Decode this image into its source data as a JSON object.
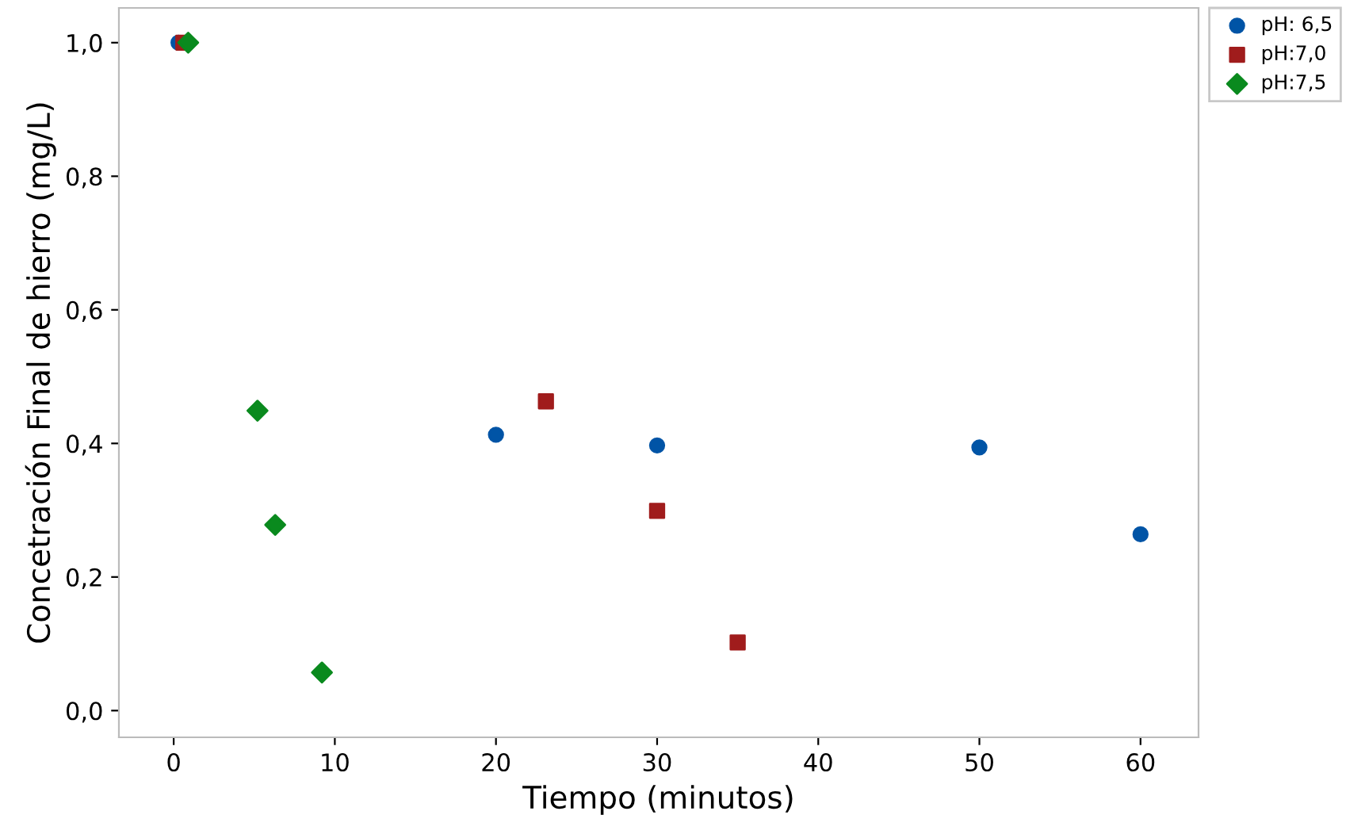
{
  "chart_data": {
    "type": "scatter",
    "xlabel": "Tiempo (minutos)",
    "ylabel": "Concetración Final de hierro (mg/L)",
    "xlim": [
      -3.4,
      63.6
    ],
    "ylim": [
      -0.04,
      1.052
    ],
    "xticks": [
      0,
      10,
      20,
      30,
      40,
      50,
      60
    ],
    "yticks": [
      {
        "value": 0,
        "label": "0,0"
      },
      {
        "value": 0.2,
        "label": "0,2"
      },
      {
        "value": 0.4,
        "label": "0,4"
      },
      {
        "value": 0.6,
        "label": "0,6"
      },
      {
        "value": 0.8,
        "label": "0,8"
      },
      {
        "value": 1.0,
        "label": "1,0"
      }
    ],
    "grid": false,
    "legend": "top right",
    "series": [
      {
        "name": "pH: 6,5",
        "color": "#0054a6",
        "marker": "circle",
        "x": [
          0.3,
          20,
          30,
          50,
          60
        ],
        "values": [
          1.0,
          0.413,
          0.397,
          0.394,
          0.264
        ]
      },
      {
        "name": "pH:7,0",
        "color": "#a01c1c",
        "marker": "square",
        "x": [
          0.6,
          23.1,
          30,
          35
        ],
        "values": [
          1.0,
          0.463,
          0.299,
          0.102
        ]
      },
      {
        "name": "pH:7,5",
        "color": "#0a8a1e",
        "marker": "diamond",
        "x": [
          0.9,
          5.2,
          6.3,
          9.2
        ],
        "values": [
          1.0,
          0.449,
          0.278,
          0.057
        ]
      }
    ]
  }
}
